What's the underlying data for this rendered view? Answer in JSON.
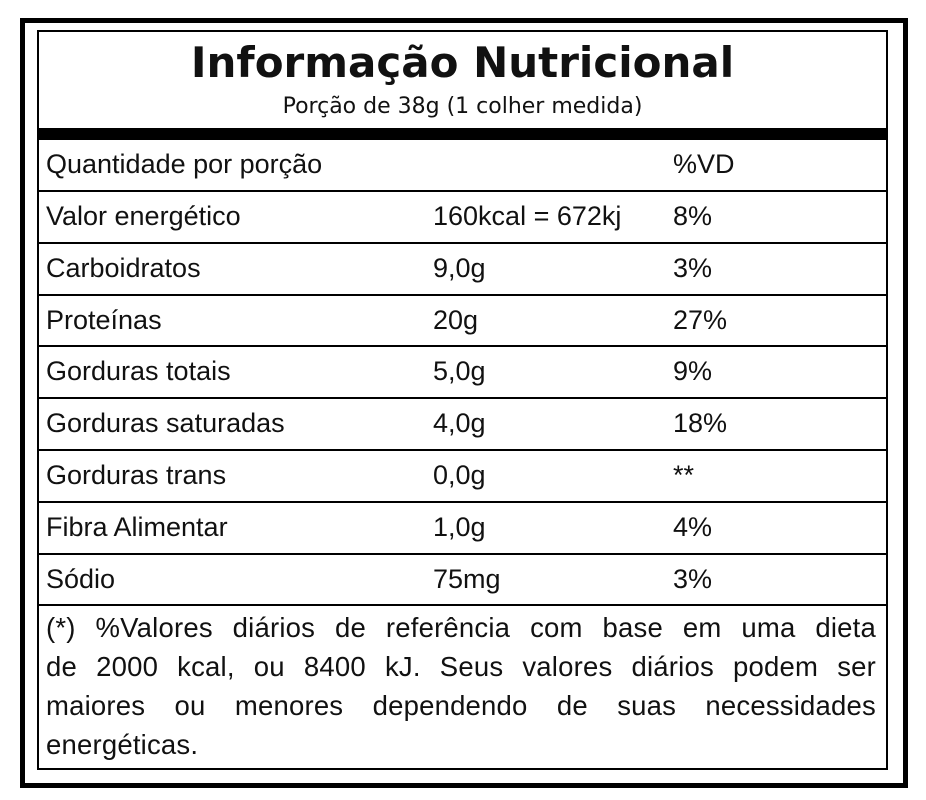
{
  "header": {
    "title": "Informação Nutricional",
    "subtitle": "Porção de 38g (1 colher medida)"
  },
  "table": {
    "header": {
      "label": "Quantidade por porção",
      "dv": "%VD"
    },
    "rows": [
      [
        "Valor energético",
        "160kcal = 672kj",
        "8%"
      ],
      [
        "Carboidratos",
        "9,0g",
        "3%"
      ],
      [
        "Proteínas",
        "20g",
        "27%"
      ],
      [
        "Gorduras totais",
        "5,0g",
        "9%"
      ],
      [
        "Gorduras saturadas",
        "4,0g",
        "18%"
      ],
      [
        "Gorduras trans",
        "0,0g",
        "**"
      ],
      [
        "Fibra Alimentar",
        "1,0g",
        "4%"
      ],
      [
        "Sódio",
        "75mg",
        "3%"
      ]
    ]
  },
  "footnote": {
    "lines": [
      "(*) %Valores diários de referência com base em uma dieta",
      "de 2000 kcal, ou 8400 kJ. Seus valores diários podem ser",
      "maiores ou menores dependendo de suas necessidades",
      "energéticas."
    ]
  }
}
